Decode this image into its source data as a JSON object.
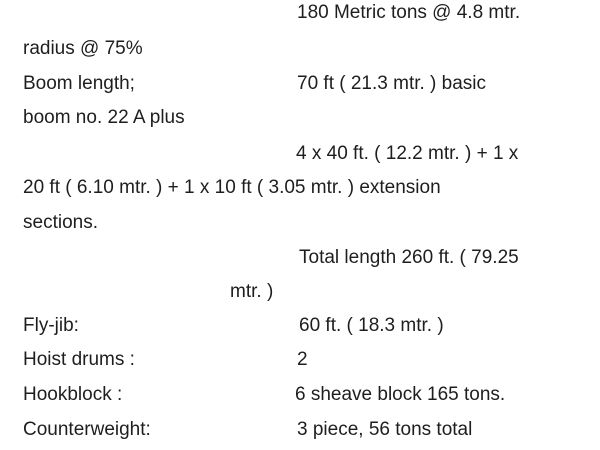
{
  "lines": [
    {
      "right": "180 Metric tons @ 4.8 mtr."
    },
    {
      "left": "radius @ 75%"
    },
    {
      "left": "Boom length;",
      "right": "70 ft ( 21.3 mtr. ) basic"
    },
    {
      "left": "boom no. 22 A  plus"
    },
    {
      "right": "4 x 40 ft. ( 12.2 mtr. )  + 1 x"
    },
    {
      "left": "20 ft ( 6.10 mtr. ) + 1 x 10 ft ( 3.05 mtr. )  extension"
    },
    {
      "left": "sections."
    },
    {
      "right": "Total length 260 ft.  ( 79.25"
    },
    {
      "mid": "mtr. )"
    },
    {
      "left": "Fly-jib:",
      "right": "60 ft.  ( 18.3 mtr. )"
    },
    {
      "left": "Hoist drums :",
      "right": "2"
    },
    {
      "left": "Hookblock :",
      "right": "6 sheave block 165 tons."
    },
    {
      "left": "Counterweight:",
      "right": "3 piece, 56 tons total"
    }
  ]
}
